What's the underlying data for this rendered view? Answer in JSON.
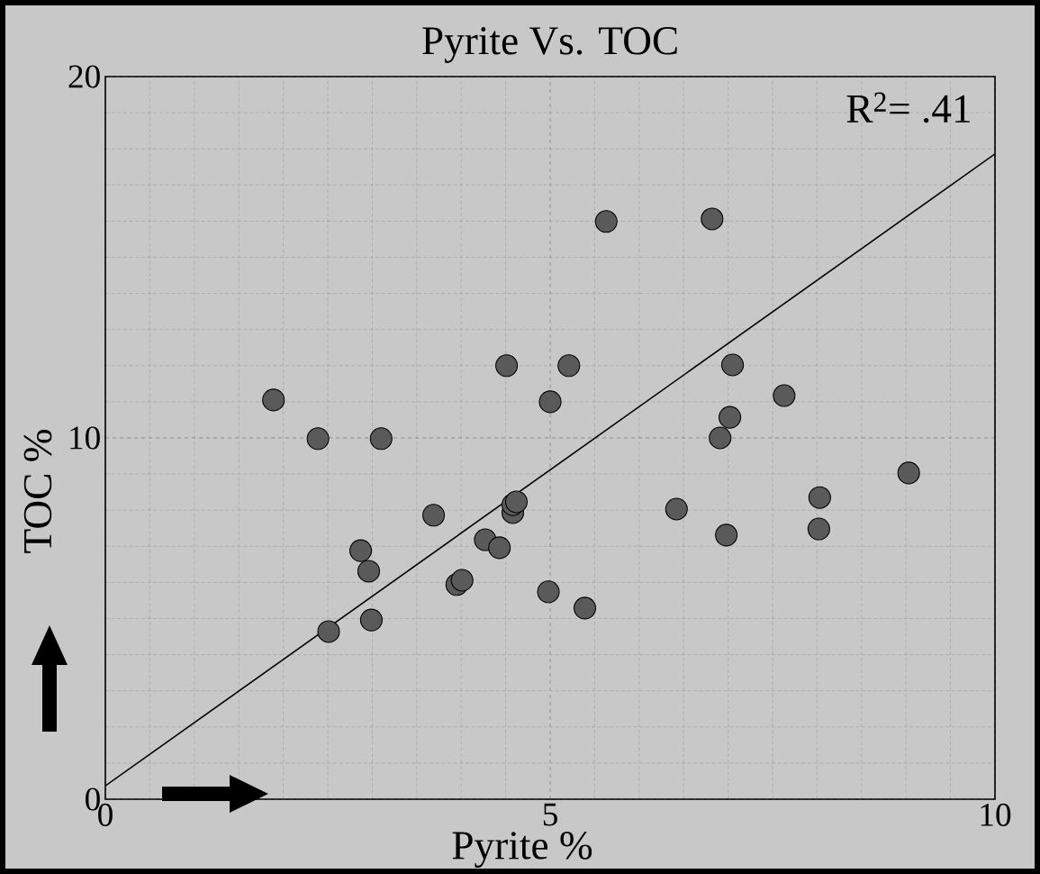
{
  "chart_data": {
    "type": "scatter",
    "title": "Pyrite Vs. TOC",
    "xlabel": "Pyrite %",
    "ylabel": "TOC %",
    "xlim": [
      0,
      10
    ],
    "ylim": [
      0,
      20
    ],
    "xticks": [
      0,
      5,
      10
    ],
    "yticks": [
      0,
      10,
      20
    ],
    "grid": true,
    "marker": "circle",
    "annotations": [
      "R$^{2}$= .41"
    ],
    "series": [
      {
        "color": "#5a5a5a",
        "x": [
          1.89,
          2.39,
          3.1,
          2.51,
          2.87,
          2.96,
          2.99,
          3.69,
          3.95,
          4.01,
          4.27,
          4.43,
          4.51,
          4.58,
          4.58,
          4.62,
          4.98,
          5.0,
          5.21,
          5.39,
          5.63,
          6.42,
          6.82,
          6.91,
          6.98,
          7.02,
          7.05,
          7.63,
          8.03,
          8.02,
          9.03
        ],
        "values": [
          11.05,
          9.98,
          9.98,
          4.64,
          6.88,
          6.31,
          4.96,
          7.86,
          5.94,
          6.06,
          7.18,
          6.96,
          12.0,
          7.93,
          8.15,
          8.23,
          5.74,
          11.0,
          12.0,
          5.29,
          15.99,
          8.03,
          16.06,
          10.0,
          7.31,
          10.57,
          12.02,
          11.17,
          8.35,
          7.48,
          9.03
        ]
      },
      {
        "type": "line",
        "color": "#000000",
        "marker": "none",
        "x": [
          0,
          10
        ],
        "values": [
          0.37,
          17.86
        ]
      }
    ]
  }
}
